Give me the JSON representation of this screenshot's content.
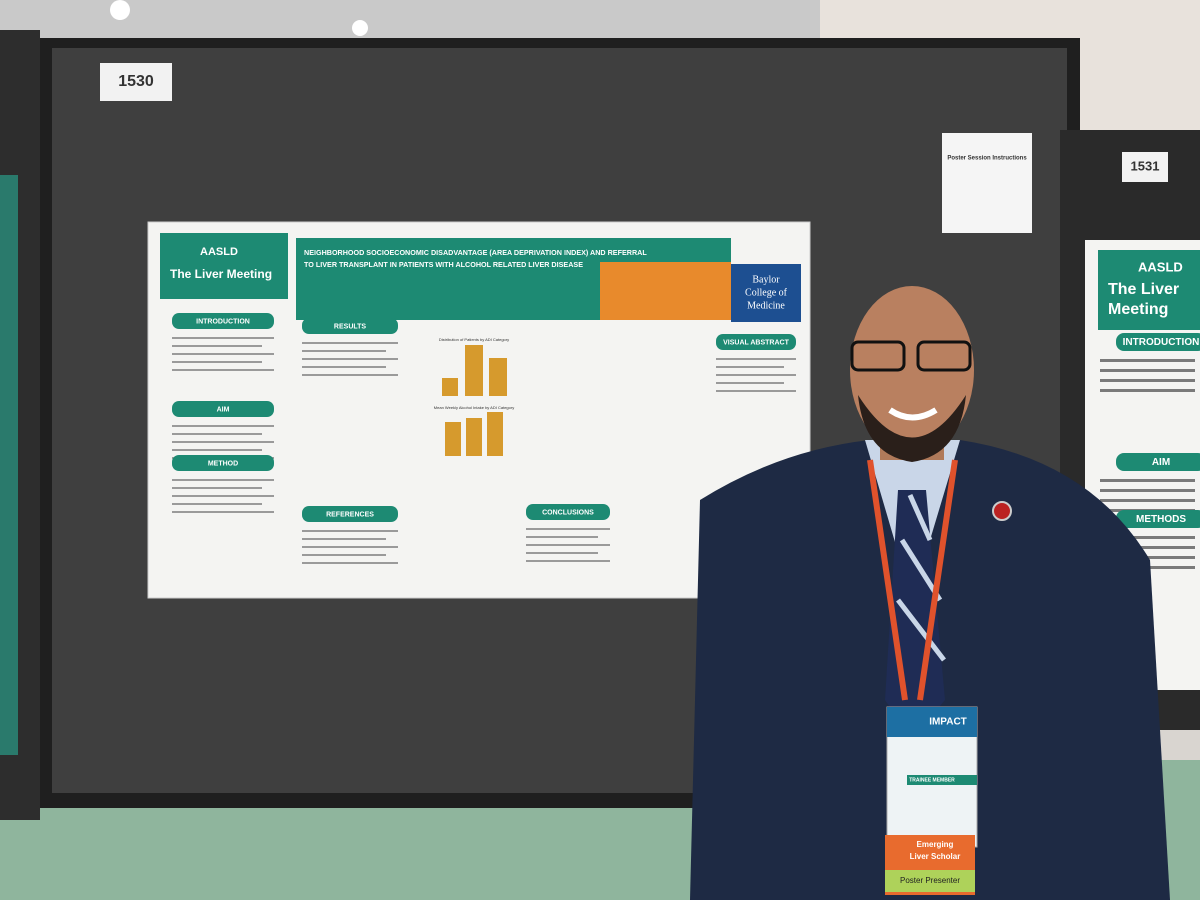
{
  "booths": {
    "left_number": "1530",
    "right_number": "1531"
  },
  "instructions_sheet": {
    "title": "Poster Session Instructions"
  },
  "poster": {
    "brand": {
      "org": "AASLD",
      "meeting": "The Liver Meeting"
    },
    "title_line1": "NEIGHBORHOOD SOCIOECONOMIC DISADVANTAGE (AREA DEPRIVATION INDEX) AND REFERRAL",
    "title_line2": "TO LIVER TRANSPLANT IN PATIENTS WITH ALCOHOL RELATED LIVER DISEASE",
    "institution_line1": "Baylor",
    "institution_line2": "College of",
    "institution_line3": "Medicine",
    "sections": [
      "INTRODUCTION",
      "AIM",
      "METHOD",
      "RESULTS",
      "REFERENCES",
      "CONCLUSIONS",
      "VISUAL ABSTRACT"
    ],
    "chart_titles": [
      "Distribution of Patients by ADI Category",
      "Mean Weekly Alcohol Intake by ADI Category"
    ]
  },
  "right_poster": {
    "brand": {
      "org": "AASLD",
      "meeting_line1": "The Liver",
      "meeting_line2": "Meeting"
    },
    "sections": [
      "INTRODUCTION",
      "AIM",
      "METHODS"
    ]
  },
  "badge": {
    "header": "IMPACT",
    "member": "TRAINEE MEMBER",
    "ribbon_line1": "Emerging",
    "ribbon_line2": "Liver Scholar",
    "ribbon_role": "Poster Presenter"
  }
}
